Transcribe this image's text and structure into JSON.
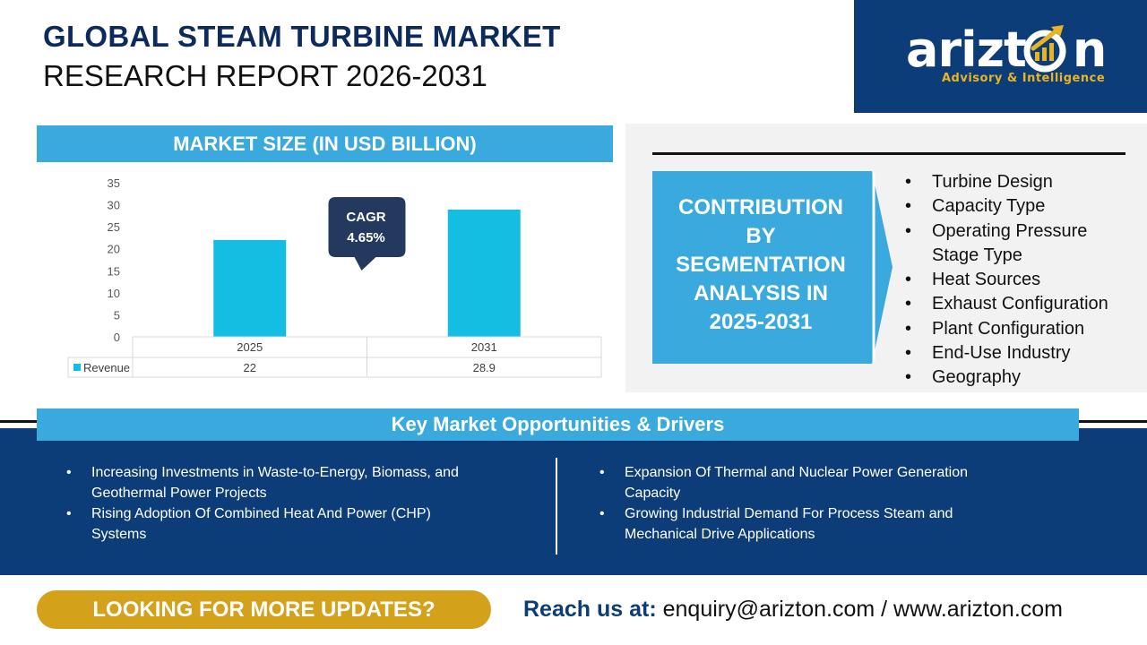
{
  "header": {
    "title_line1": "GLOBAL STEAM TURBINE MARKET",
    "title_line2": "RESEARCH REPORT 2026-2031"
  },
  "logo": {
    "wordmark_pre": "arizt",
    "wordmark_post": "n",
    "tagline": "Advisory & Intelligence",
    "icon": "growth-arrow-icon",
    "accent_color": "#e8b422"
  },
  "market_size": {
    "header": "MARKET SIZE (IN USD BILLION)",
    "cagr_label": "CAGR",
    "cagr_value": "4.65%"
  },
  "chart_data": {
    "type": "bar",
    "categories": [
      "2025",
      "2031"
    ],
    "series": [
      {
        "name": "Revenue",
        "values": [
          22,
          28.9
        ],
        "value_labels": [
          "22",
          "28.9"
        ],
        "color": "#14bde2"
      }
    ],
    "ylim": [
      0,
      35
    ],
    "yticks": [
      "0",
      "5",
      "10",
      "15",
      "20",
      "25",
      "30",
      "35"
    ],
    "title": "",
    "xlabel": "",
    "ylabel": "",
    "grid": false,
    "legend": "data-table"
  },
  "segmentation": {
    "title": "CONTRIBUTION BY SEGMENTATION ANALYSIS IN 2025-2031",
    "title_lines": [
      "CONTRIBUTION",
      "BY",
      "SEGMENTATION",
      "ANALYSIS IN",
      "2025-2031"
    ],
    "items": [
      [
        "Turbine Design"
      ],
      [
        "Capacity Type"
      ],
      [
        "Operating Pressure",
        "Stage Type"
      ],
      [
        "Heat Sources"
      ],
      [
        "Exhaust Configuration"
      ],
      [
        "Plant Configuration"
      ],
      [
        "End-Use Industry"
      ],
      [
        "Geography"
      ]
    ]
  },
  "opportunities": {
    "header": "Key Market Opportunities & Drivers",
    "left": [
      [
        "Increasing Investments in Waste-to-Energy, Biomass, and",
        "Geothermal Power Projects"
      ],
      [
        "Rising Adoption Of Combined Heat And Power (CHP)",
        "Systems"
      ]
    ],
    "right": [
      [
        "Expansion Of Thermal and Nuclear Power Generation",
        "Capacity"
      ],
      [
        "Growing Industrial Demand For Process Steam and",
        "Mechanical Drive Applications"
      ]
    ]
  },
  "footer": {
    "cta": "LOOKING FOR MORE UPDATES?",
    "reach_label": "Reach us at:",
    "contact": "enquiry@arizton.com / www.arizton.com"
  },
  "colors": {
    "navy": "#0d3d78",
    "header_blue": "#3aa9de",
    "bar": "#14bde2",
    "gold": "#d4a11a"
  }
}
